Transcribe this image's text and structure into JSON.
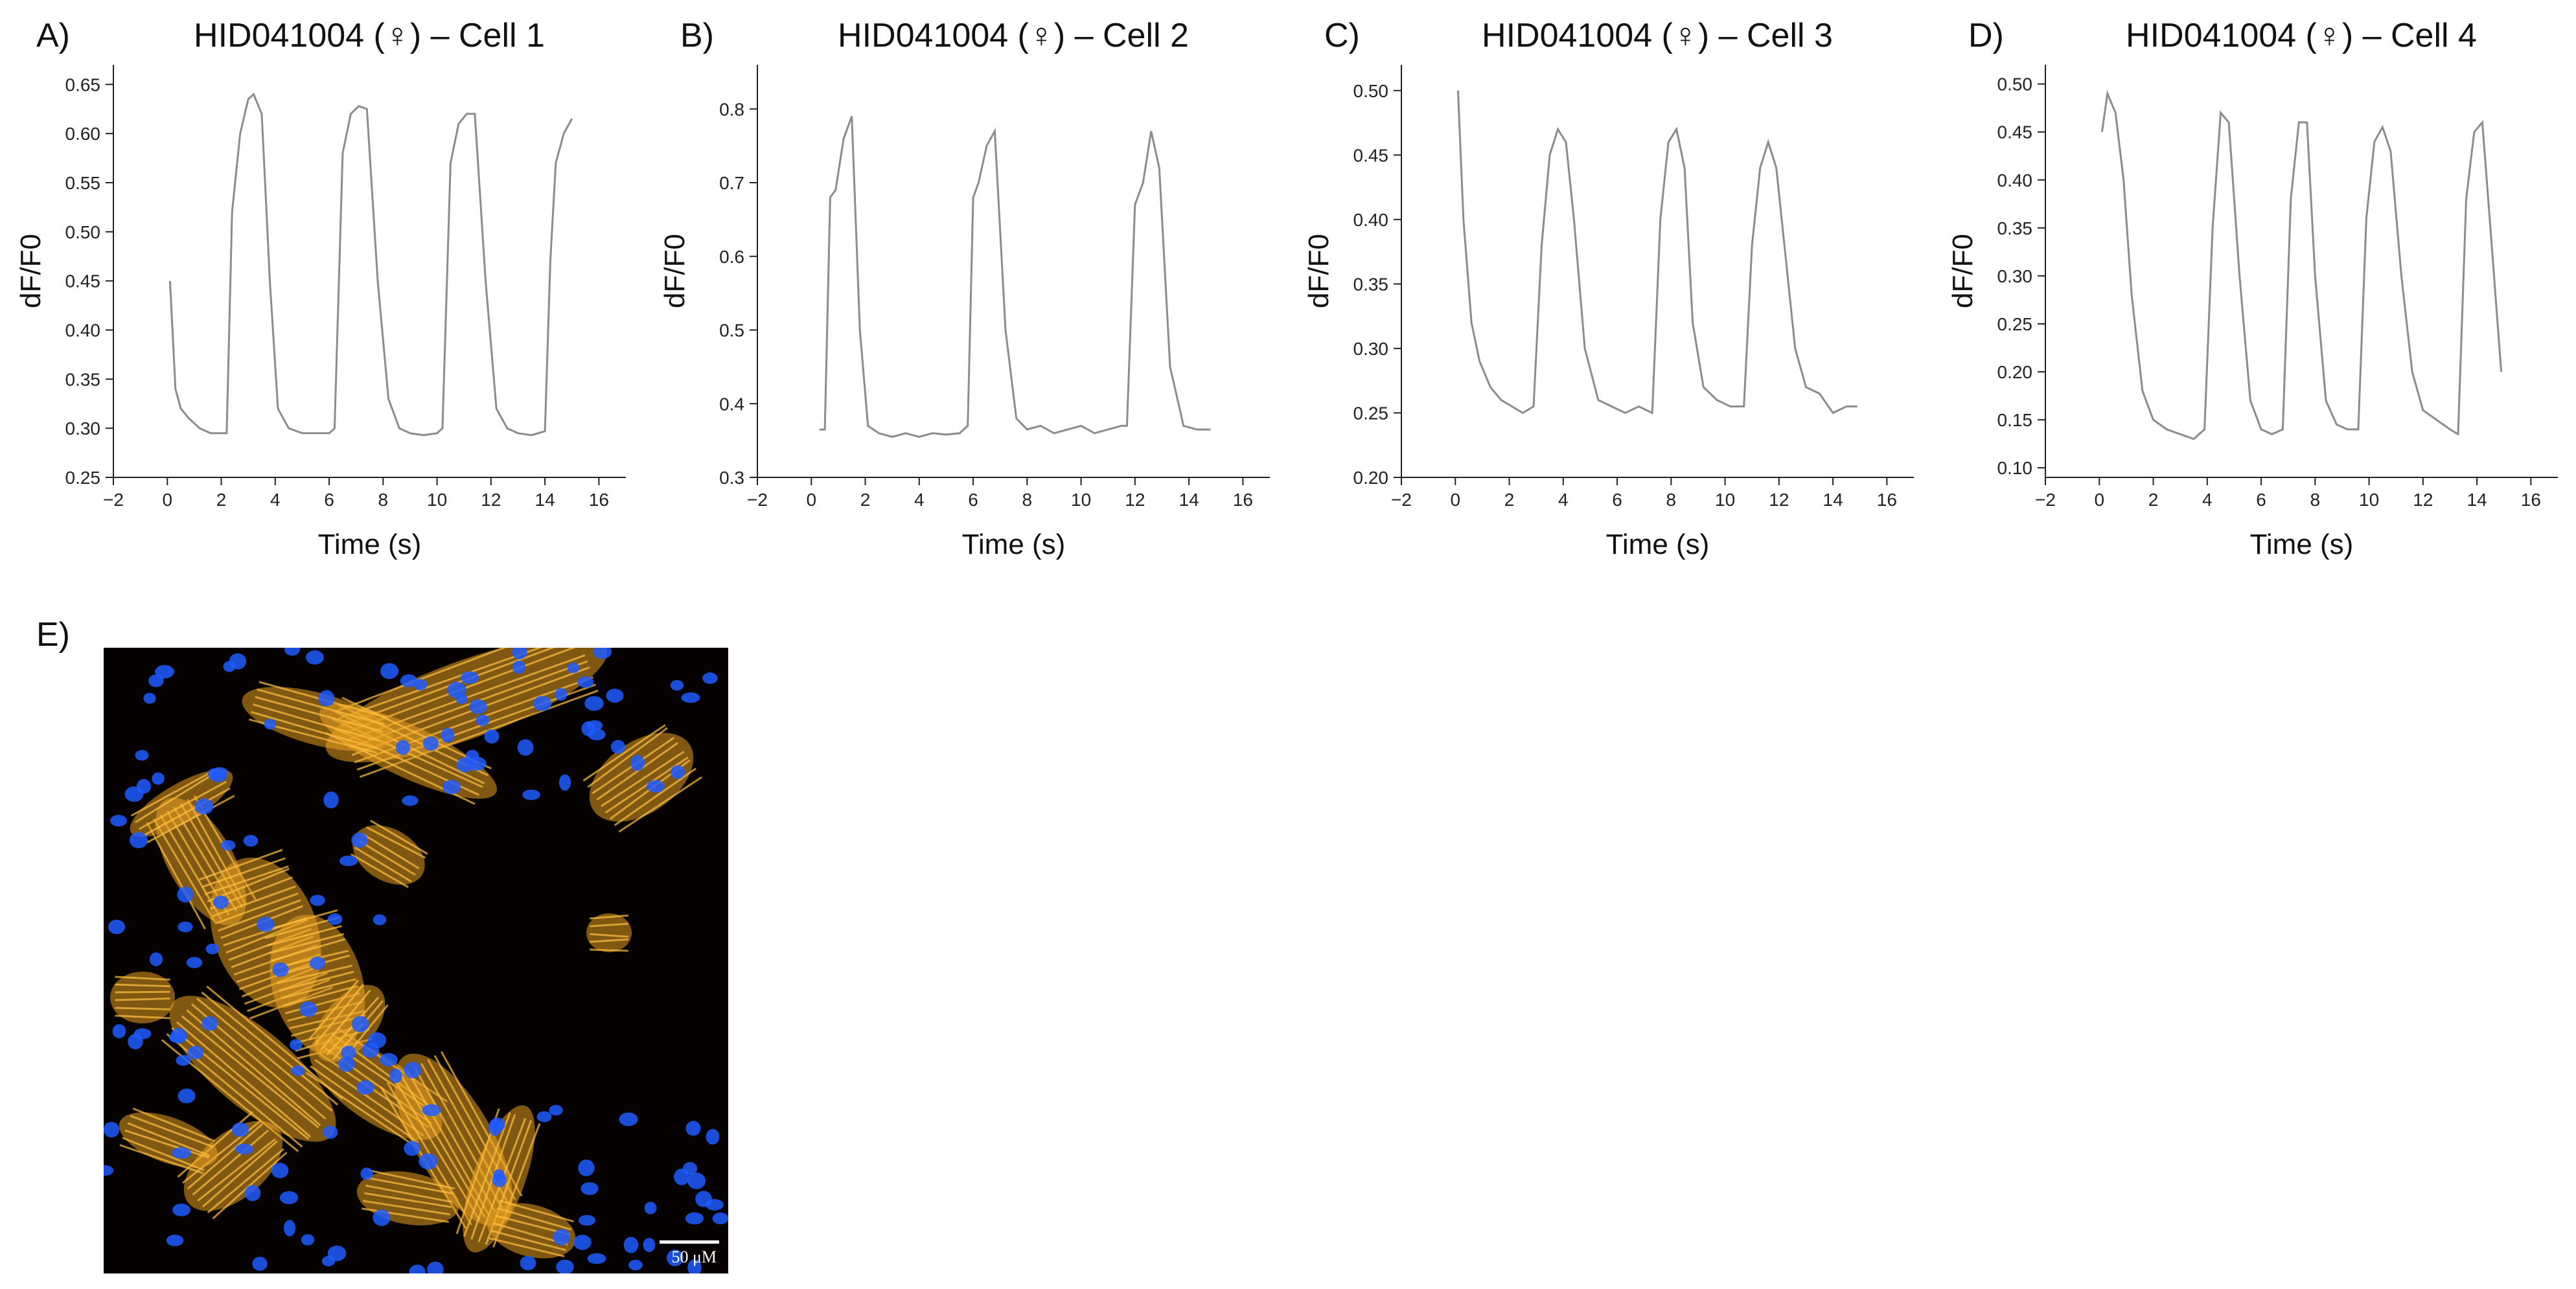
{
  "colors": {
    "trace": "#8c8c8c",
    "axis": "#222222",
    "actin": "#e8a020",
    "nuclei": "#1f5cff",
    "background": "#050201"
  },
  "chart_data": [
    {
      "type": "line",
      "panel": "A)",
      "title": "HID041004 (♀) – Cell 1",
      "xlabel": "Time (s)",
      "ylabel": "dF/F0",
      "xlim": [
        -2,
        17
      ],
      "ylim": [
        0.25,
        0.67
      ],
      "xticks": [
        -2,
        0,
        2,
        4,
        6,
        8,
        10,
        12,
        14,
        16
      ],
      "yticks": [
        0.25,
        0.3,
        0.35,
        0.4,
        0.45,
        0.5,
        0.55,
        0.6,
        0.65
      ],
      "ytick_labels": [
        "0.25",
        "0.30",
        "0.35",
        "0.40",
        "0.45",
        "0.50",
        "0.55",
        "0.60",
        "0.65"
      ],
      "x": [
        0.1,
        0.3,
        0.5,
        0.8,
        1.2,
        1.6,
        2.0,
        2.2,
        2.4,
        2.7,
        3.0,
        3.2,
        3.5,
        3.8,
        4.1,
        4.5,
        5.0,
        5.5,
        6.0,
        6.2,
        6.5,
        6.8,
        7.1,
        7.4,
        7.8,
        8.2,
        8.6,
        9.0,
        9.5,
        10.0,
        10.2,
        10.5,
        10.8,
        11.1,
        11.4,
        11.8,
        12.2,
        12.6,
        13.0,
        13.5,
        14.0,
        14.2,
        14.4,
        14.7,
        15.0
      ],
      "y": [
        0.45,
        0.34,
        0.32,
        0.31,
        0.3,
        0.295,
        0.295,
        0.295,
        0.52,
        0.6,
        0.635,
        0.64,
        0.62,
        0.45,
        0.32,
        0.3,
        0.295,
        0.295,
        0.295,
        0.3,
        0.58,
        0.62,
        0.628,
        0.625,
        0.45,
        0.33,
        0.3,
        0.295,
        0.293,
        0.295,
        0.3,
        0.57,
        0.61,
        0.62,
        0.62,
        0.45,
        0.32,
        0.3,
        0.295,
        0.293,
        0.297,
        0.47,
        0.57,
        0.6,
        0.615
      ]
    },
    {
      "type": "line",
      "panel": "B)",
      "title": "HID041004 (♀) – Cell 2",
      "xlabel": "Time (s)",
      "ylabel": "dF/F0",
      "xlim": [
        -2,
        17
      ],
      "ylim": [
        0.3,
        0.86
      ],
      "xticks": [
        -2,
        0,
        2,
        4,
        6,
        8,
        10,
        12,
        14,
        16
      ],
      "yticks": [
        0.3,
        0.4,
        0.5,
        0.6,
        0.7,
        0.8
      ],
      "ytick_labels": [
        "0.3",
        "0.4",
        "0.5",
        "0.6",
        "0.7",
        "0.8"
      ],
      "x": [
        0.3,
        0.5,
        0.7,
        0.9,
        1.2,
        1.5,
        1.8,
        2.1,
        2.5,
        3.0,
        3.5,
        4.0,
        4.5,
        5.0,
        5.5,
        5.8,
        6.0,
        6.2,
        6.5,
        6.8,
        7.2,
        7.6,
        8.0,
        8.5,
        9.0,
        9.5,
        10.0,
        10.5,
        11.0,
        11.5,
        11.7,
        12.0,
        12.3,
        12.6,
        12.9,
        13.3,
        13.8,
        14.3,
        14.8
      ],
      "y": [
        0.365,
        0.365,
        0.68,
        0.69,
        0.76,
        0.79,
        0.5,
        0.37,
        0.36,
        0.355,
        0.36,
        0.355,
        0.36,
        0.358,
        0.36,
        0.37,
        0.68,
        0.7,
        0.75,
        0.77,
        0.5,
        0.38,
        0.365,
        0.37,
        0.36,
        0.365,
        0.37,
        0.36,
        0.365,
        0.37,
        0.37,
        0.67,
        0.7,
        0.77,
        0.72,
        0.45,
        0.37,
        0.365,
        0.365
      ]
    },
    {
      "type": "line",
      "panel": "C)",
      "title": "HID041004 (♀) – Cell 3",
      "xlabel": "Time (s)",
      "ylabel": "dF/F0",
      "xlim": [
        -2,
        17
      ],
      "ylim": [
        0.2,
        0.52
      ],
      "xticks": [
        -2,
        0,
        2,
        4,
        6,
        8,
        10,
        12,
        14,
        16
      ],
      "yticks": [
        0.2,
        0.25,
        0.3,
        0.35,
        0.4,
        0.45,
        0.5
      ],
      "ytick_labels": [
        "0.20",
        "0.25",
        "0.30",
        "0.35",
        "0.40",
        "0.45",
        "0.50"
      ],
      "x": [
        0.1,
        0.3,
        0.6,
        0.9,
        1.3,
        1.7,
        2.1,
        2.5,
        2.9,
        3.2,
        3.5,
        3.8,
        4.1,
        4.4,
        4.8,
        5.3,
        5.8,
        6.3,
        6.8,
        7.3,
        7.6,
        7.9,
        8.2,
        8.5,
        8.8,
        9.2,
        9.7,
        10.2,
        10.7,
        11.0,
        11.3,
        11.6,
        11.9,
        12.2,
        12.6,
        13.0,
        13.5,
        14.0,
        14.5,
        14.9
      ],
      "y": [
        0.5,
        0.4,
        0.32,
        0.29,
        0.27,
        0.26,
        0.255,
        0.25,
        0.255,
        0.38,
        0.45,
        0.47,
        0.46,
        0.4,
        0.3,
        0.26,
        0.255,
        0.25,
        0.255,
        0.25,
        0.4,
        0.46,
        0.47,
        0.44,
        0.32,
        0.27,
        0.26,
        0.255,
        0.255,
        0.38,
        0.44,
        0.46,
        0.44,
        0.38,
        0.3,
        0.27,
        0.265,
        0.25,
        0.255,
        0.255
      ]
    },
    {
      "type": "line",
      "panel": "D)",
      "title": "HID041004 (♀) – Cell 4",
      "xlabel": "Time (s)",
      "ylabel": "dF/F0",
      "xlim": [
        -2,
        17
      ],
      "ylim": [
        0.09,
        0.52
      ],
      "xticks": [
        -2,
        0,
        2,
        4,
        6,
        8,
        10,
        12,
        14,
        16
      ],
      "yticks": [
        0.1,
        0.15,
        0.2,
        0.25,
        0.3,
        0.35,
        0.4,
        0.45,
        0.5
      ],
      "ytick_labels": [
        "0.10",
        "0.15",
        "0.20",
        "0.25",
        "0.30",
        "0.35",
        "0.40",
        "0.45",
        "0.50"
      ],
      "x": [
        0.1,
        0.3,
        0.6,
        0.9,
        1.2,
        1.6,
        2.0,
        2.5,
        3.0,
        3.5,
        3.9,
        4.2,
        4.5,
        4.8,
        5.2,
        5.6,
        6.0,
        6.4,
        6.8,
        7.1,
        7.4,
        7.7,
        8.0,
        8.4,
        8.8,
        9.2,
        9.6,
        9.9,
        10.2,
        10.5,
        10.8,
        11.2,
        11.6,
        12.0,
        12.5,
        13.0,
        13.3,
        13.6,
        13.9,
        14.2,
        14.5,
        14.9
      ],
      "y": [
        0.45,
        0.49,
        0.47,
        0.4,
        0.28,
        0.18,
        0.15,
        0.14,
        0.135,
        0.13,
        0.14,
        0.35,
        0.47,
        0.46,
        0.3,
        0.17,
        0.14,
        0.135,
        0.14,
        0.38,
        0.46,
        0.46,
        0.3,
        0.17,
        0.145,
        0.14,
        0.14,
        0.36,
        0.44,
        0.455,
        0.43,
        0.3,
        0.2,
        0.16,
        0.15,
        0.14,
        0.135,
        0.38,
        0.45,
        0.46,
        0.35,
        0.2
      ]
    }
  ],
  "panel_e": {
    "label": "E)",
    "image": "fluorescence micrograph of cardiomyocytes: orange actin filaments, blue nuclei on black",
    "scale_bar": "50 μM"
  }
}
